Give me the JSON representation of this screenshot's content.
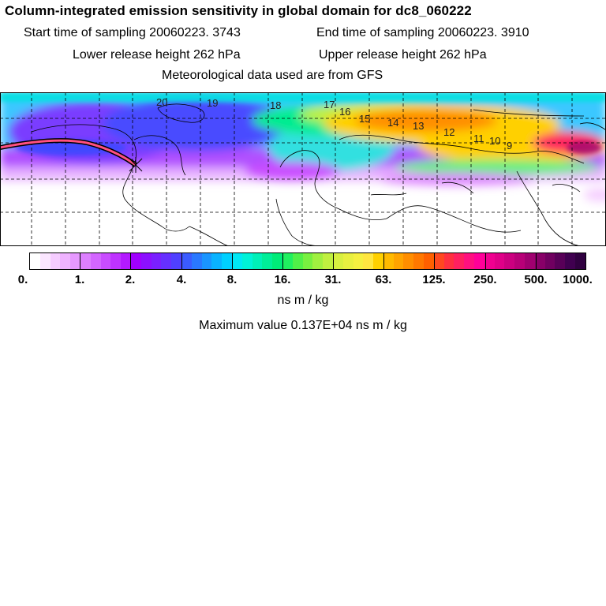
{
  "title": "Column-integrated emission sensitivity in global domain for dc8_060222",
  "header": {
    "start_label": "Start time of sampling 20060223.  3743",
    "end_label": "End time of sampling 20060223.  3910",
    "lower_label": "Lower release height  262 hPa",
    "upper_label": "Upper release height  262 hPa",
    "met_label": "Meteorological data used are from GFS"
  },
  "map": {
    "time_markers": [
      "20",
      "19",
      "18",
      "17",
      "16",
      "15",
      "14",
      "13",
      "12",
      "11",
      "10",
      "9"
    ],
    "track_color": "#ff5080"
  },
  "colorbar": {
    "tick_labels": [
      "0.",
      "1.",
      "2.",
      "4.",
      "8.",
      "16.",
      "31.",
      "63.",
      "125.",
      "250.",
      "500.",
      "1000."
    ],
    "colors": [
      "#ffffff",
      "#fbe6ff",
      "#f5ccff",
      "#efb3ff",
      "#e699ff",
      "#dd80ff",
      "#d366ff",
      "#c94dff",
      "#bf33ff",
      "#b31aff",
      "#a000ff",
      "#8c10ff",
      "#7a20ff",
      "#6630ff",
      "#5040ff",
      "#3b5bff",
      "#2a78ff",
      "#1a95ff",
      "#0ab3ff",
      "#00d0ff",
      "#00e8f5",
      "#00f2d8",
      "#00f0b8",
      "#00ee98",
      "#00ec78",
      "#20f060",
      "#50f048",
      "#78f040",
      "#a0f040",
      "#c0f040",
      "#d8f040",
      "#e8f040",
      "#f5f040",
      "#ffe640",
      "#ffd000",
      "#ffba00",
      "#ffa400",
      "#ff8e00",
      "#ff7800",
      "#ff6000",
      "#ff4820",
      "#ff3040",
      "#ff2060",
      "#ff1080",
      "#ff0099",
      "#f00090",
      "#e00088",
      "#cc0080",
      "#b80078",
      "#a00070",
      "#880068",
      "#700060",
      "#580058",
      "#400050",
      "#300040"
    ],
    "units": "ns m / kg",
    "max_label": "Maximum value  0.137E+04 ns m / kg"
  }
}
